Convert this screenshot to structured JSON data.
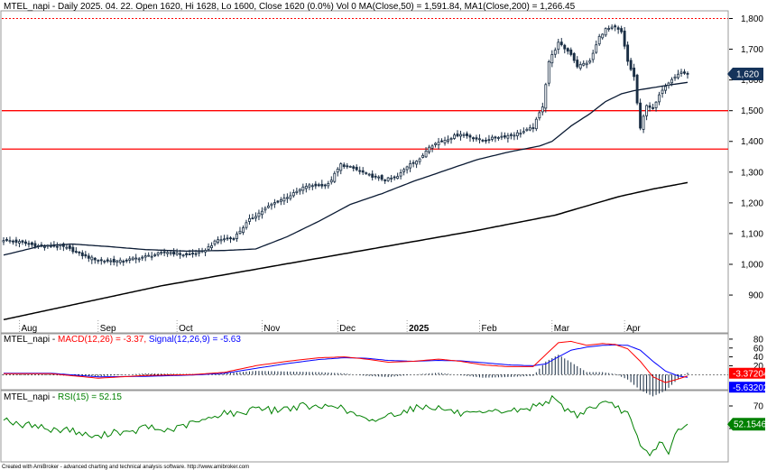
{
  "chart_data": [
    {
      "type": "candlestick",
      "title": "MTEL_napi - Daily 2025. 04. 22. Open 1620, Hi 1628, Lo 1600, Close 1620 (0.0%) Vol 0 MA(Close,50) = 1,591.84, MA1(Close,200) = 1,266.45",
      "y_ticks": [
        900,
        1000,
        1100,
        1200,
        1300,
        1400,
        1500,
        1600,
        1700,
        1800
      ],
      "y_tick_labels": [
        "900",
        "1,000",
        "1,100",
        "1,200",
        "1,300",
        "1,400",
        "1,500",
        "1,600",
        "1,700",
        "1,800"
      ],
      "ylim": [
        818,
        1822
      ],
      "x_labels": [
        "Aug",
        "Sep",
        "Oct",
        "Nov",
        "Dec",
        "2025",
        "Feb",
        "Mar",
        "Apr"
      ],
      "x_label_index": [
        5,
        30,
        55,
        82,
        106,
        128,
        151,
        174,
        197
      ],
      "last_price_label": "1,620",
      "horizontal_lines": [
        1800,
        1500,
        1375
      ],
      "colors": {
        "up": "#ffffff",
        "down": "#1a2e44",
        "candle_edge": "#1a2e44",
        "ma": "#0a1a33",
        "line": "#ff0000",
        "price_box": "#15335a"
      },
      "close_anchors": [
        [
          0,
          1080
        ],
        [
          5,
          1072
        ],
        [
          12,
          1058
        ],
        [
          18,
          1060
        ],
        [
          22,
          1045
        ],
        [
          26,
          1025
        ],
        [
          31,
          1012
        ],
        [
          37,
          1010
        ],
        [
          45,
          1025
        ],
        [
          52,
          1040
        ],
        [
          58,
          1030
        ],
        [
          63,
          1040
        ],
        [
          68,
          1080
        ],
        [
          73,
          1085
        ],
        [
          78,
          1145
        ],
        [
          85,
          1195
        ],
        [
          92,
          1230
        ],
        [
          96,
          1255
        ],
        [
          103,
          1260
        ],
        [
          107,
          1325
        ],
        [
          111,
          1312
        ],
        [
          116,
          1290
        ],
        [
          121,
          1275
        ],
        [
          125,
          1285
        ],
        [
          129,
          1330
        ],
        [
          132,
          1340
        ],
        [
          135,
          1385
        ],
        [
          140,
          1405
        ],
        [
          145,
          1425
        ],
        [
          152,
          1402
        ],
        [
          157,
          1415
        ],
        [
          161,
          1420
        ],
        [
          165,
          1432
        ],
        [
          168,
          1445
        ],
        [
          171,
          1515
        ],
        [
          173,
          1660
        ],
        [
          176,
          1720
        ],
        [
          180,
          1685
        ],
        [
          182,
          1645
        ],
        [
          186,
          1660
        ],
        [
          189,
          1740
        ],
        [
          191,
          1765
        ],
        [
          194,
          1770
        ],
        [
          196,
          1755
        ],
        [
          198,
          1660
        ],
        [
          200,
          1610
        ],
        [
          202,
          1440
        ],
        [
          204,
          1520
        ],
        [
          206,
          1505
        ],
        [
          209,
          1570
        ],
        [
          212,
          1605
        ],
        [
          215,
          1625
        ],
        [
          217,
          1620
        ]
      ],
      "ma50_anchors": [
        [
          0,
          1030
        ],
        [
          12,
          1060
        ],
        [
          22,
          1066
        ],
        [
          33,
          1058
        ],
        [
          45,
          1048
        ],
        [
          58,
          1043
        ],
        [
          70,
          1045
        ],
        [
          80,
          1050
        ],
        [
          90,
          1090
        ],
        [
          100,
          1140
        ],
        [
          110,
          1195
        ],
        [
          120,
          1230
        ],
        [
          130,
          1270
        ],
        [
          140,
          1305
        ],
        [
          150,
          1340
        ],
        [
          160,
          1365
        ],
        [
          170,
          1385
        ],
        [
          174,
          1400
        ],
        [
          180,
          1450
        ],
        [
          186,
          1490
        ],
        [
          191,
          1530
        ],
        [
          196,
          1555
        ],
        [
          200,
          1565
        ],
        [
          206,
          1575
        ],
        [
          212,
          1585
        ],
        [
          217,
          1592
        ]
      ],
      "ma200_anchors": [
        [
          0,
          820
        ],
        [
          50,
          930
        ],
        [
          100,
          1020
        ],
        [
          150,
          1110
        ],
        [
          175,
          1160
        ],
        [
          195,
          1220
        ],
        [
          206,
          1245
        ],
        [
          217,
          1266
        ]
      ]
    },
    {
      "type": "line",
      "title": "MTEL_napi - MACD(12,26) = -3.37, Signal(12,26,9) = -5.63",
      "y_ticks": [
        20,
        40,
        60,
        80
      ],
      "y_tick_labels": [
        "20",
        "40",
        "60",
        "80"
      ],
      "ylim": [
        -30,
        88
      ],
      "macd_label": "-3.37204",
      "signal_label": "-5.63202",
      "colors": {
        "macd": "#ff0000",
        "signal": "#0000ff",
        "hist": "#1a2e44",
        "macd_box": "#ff0000",
        "signal_box": "#0000ff"
      },
      "macd_anchors": [
        [
          0,
          2
        ],
        [
          15,
          2
        ],
        [
          30,
          -8
        ],
        [
          45,
          -2
        ],
        [
          60,
          0
        ],
        [
          70,
          5
        ],
        [
          80,
          20
        ],
        [
          90,
          30
        ],
        [
          100,
          38
        ],
        [
          108,
          40
        ],
        [
          115,
          35
        ],
        [
          122,
          28
        ],
        [
          130,
          30
        ],
        [
          138,
          35
        ],
        [
          145,
          30
        ],
        [
          152,
          22
        ],
        [
          160,
          18
        ],
        [
          168,
          18
        ],
        [
          172,
          45
        ],
        [
          176,
          72
        ],
        [
          180,
          75
        ],
        [
          185,
          66
        ],
        [
          190,
          70
        ],
        [
          194,
          68
        ],
        [
          198,
          58
        ],
        [
          202,
          30
        ],
        [
          206,
          -5
        ],
        [
          210,
          -18
        ],
        [
          214,
          -10
        ],
        [
          217,
          -3
        ]
      ],
      "signal_anchors": [
        [
          0,
          3
        ],
        [
          15,
          3
        ],
        [
          30,
          -5
        ],
        [
          45,
          -4
        ],
        [
          60,
          -1
        ],
        [
          70,
          3
        ],
        [
          80,
          14
        ],
        [
          90,
          25
        ],
        [
          100,
          34
        ],
        [
          108,
          38
        ],
        [
          115,
          37
        ],
        [
          122,
          32
        ],
        [
          130,
          30
        ],
        [
          138,
          32
        ],
        [
          145,
          31
        ],
        [
          152,
          27
        ],
        [
          160,
          22
        ],
        [
          168,
          20
        ],
        [
          172,
          24
        ],
        [
          176,
          40
        ],
        [
          180,
          55
        ],
        [
          185,
          62
        ],
        [
          190,
          66
        ],
        [
          194,
          67
        ],
        [
          198,
          66
        ],
        [
          202,
          55
        ],
        [
          206,
          30
        ],
        [
          210,
          8
        ],
        [
          214,
          -3
        ],
        [
          217,
          -6
        ]
      ]
    },
    {
      "type": "line",
      "title": "MTEL_napi - RSI(15) = 52.15",
      "y_ticks": [
        50,
        70
      ],
      "y_tick_labels": [
        "50",
        "70"
      ],
      "ylim": [
        22,
        82
      ],
      "rsi_label": "52.1546",
      "colors": {
        "rsi": "#008000",
        "rsi_box": "#008000"
      },
      "rsi_anchors": [
        [
          0,
          60
        ],
        [
          5,
          52
        ],
        [
          10,
          54
        ],
        [
          15,
          48
        ],
        [
          20,
          50
        ],
        [
          25,
          45
        ],
        [
          30,
          42
        ],
        [
          35,
          48
        ],
        [
          40,
          45
        ],
        [
          45,
          52
        ],
        [
          50,
          48
        ],
        [
          55,
          50
        ],
        [
          60,
          55
        ],
        [
          65,
          58
        ],
        [
          70,
          65
        ],
        [
          75,
          62
        ],
        [
          80,
          70
        ],
        [
          85,
          66
        ],
        [
          90,
          68
        ],
        [
          95,
          70
        ],
        [
          100,
          68
        ],
        [
          105,
          72
        ],
        [
          108,
          66
        ],
        [
          112,
          62
        ],
        [
          116,
          55
        ],
        [
          120,
          60
        ],
        [
          125,
          64
        ],
        [
          130,
          68
        ],
        [
          135,
          70
        ],
        [
          140,
          67
        ],
        [
          145,
          63
        ],
        [
          150,
          62
        ],
        [
          155,
          64
        ],
        [
          160,
          66
        ],
        [
          165,
          66
        ],
        [
          170,
          72
        ],
        [
          174,
          76
        ],
        [
          178,
          68
        ],
        [
          182,
          62
        ],
        [
          186,
          68
        ],
        [
          190,
          72
        ],
        [
          194,
          70
        ],
        [
          198,
          63
        ],
        [
          202,
          34
        ],
        [
          205,
          26
        ],
        [
          208,
          38
        ],
        [
          211,
          30
        ],
        [
          214,
          48
        ],
        [
          217,
          52
        ]
      ]
    }
  ],
  "footer": {
    "credit": "Created with AmiBroker - advanced charting and technical analysis software. http://www.amibroker.com"
  }
}
